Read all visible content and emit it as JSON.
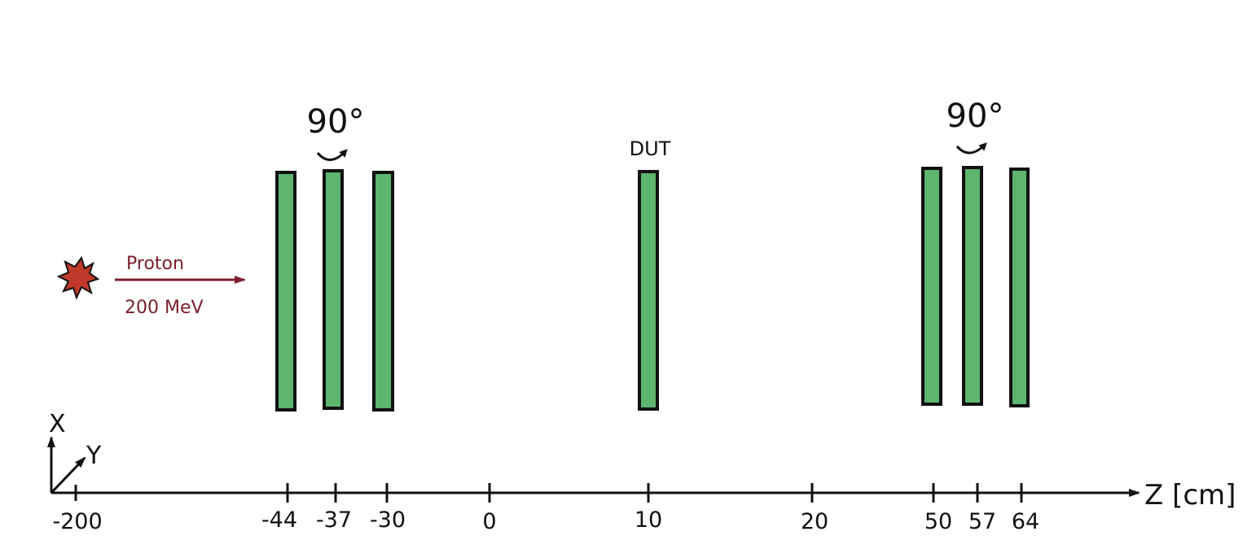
{
  "beam": {
    "particle": "Proton",
    "energy": "200 MeV",
    "color": "#7a1f2b",
    "source_color": "#c0392b",
    "source_icon": "explosion-star-icon"
  },
  "axis": {
    "z_label": "Z [cm]",
    "x_label": "X",
    "y_label": "Y",
    "ticks": [
      "-200",
      "-44",
      "-37",
      "-30",
      "0",
      "10",
      "20",
      "50",
      "57",
      "64"
    ]
  },
  "planes": {
    "positions_cm": [
      -44,
      -37,
      -30,
      10,
      50,
      57,
      64
    ],
    "fill_color": "#5db56e",
    "dut_label": "DUT",
    "dut_position_cm": 10
  },
  "rotations": {
    "upstream_label": "90°",
    "downstream_label": "90°",
    "rotated_plane_positions_cm": [
      -37,
      57
    ]
  }
}
